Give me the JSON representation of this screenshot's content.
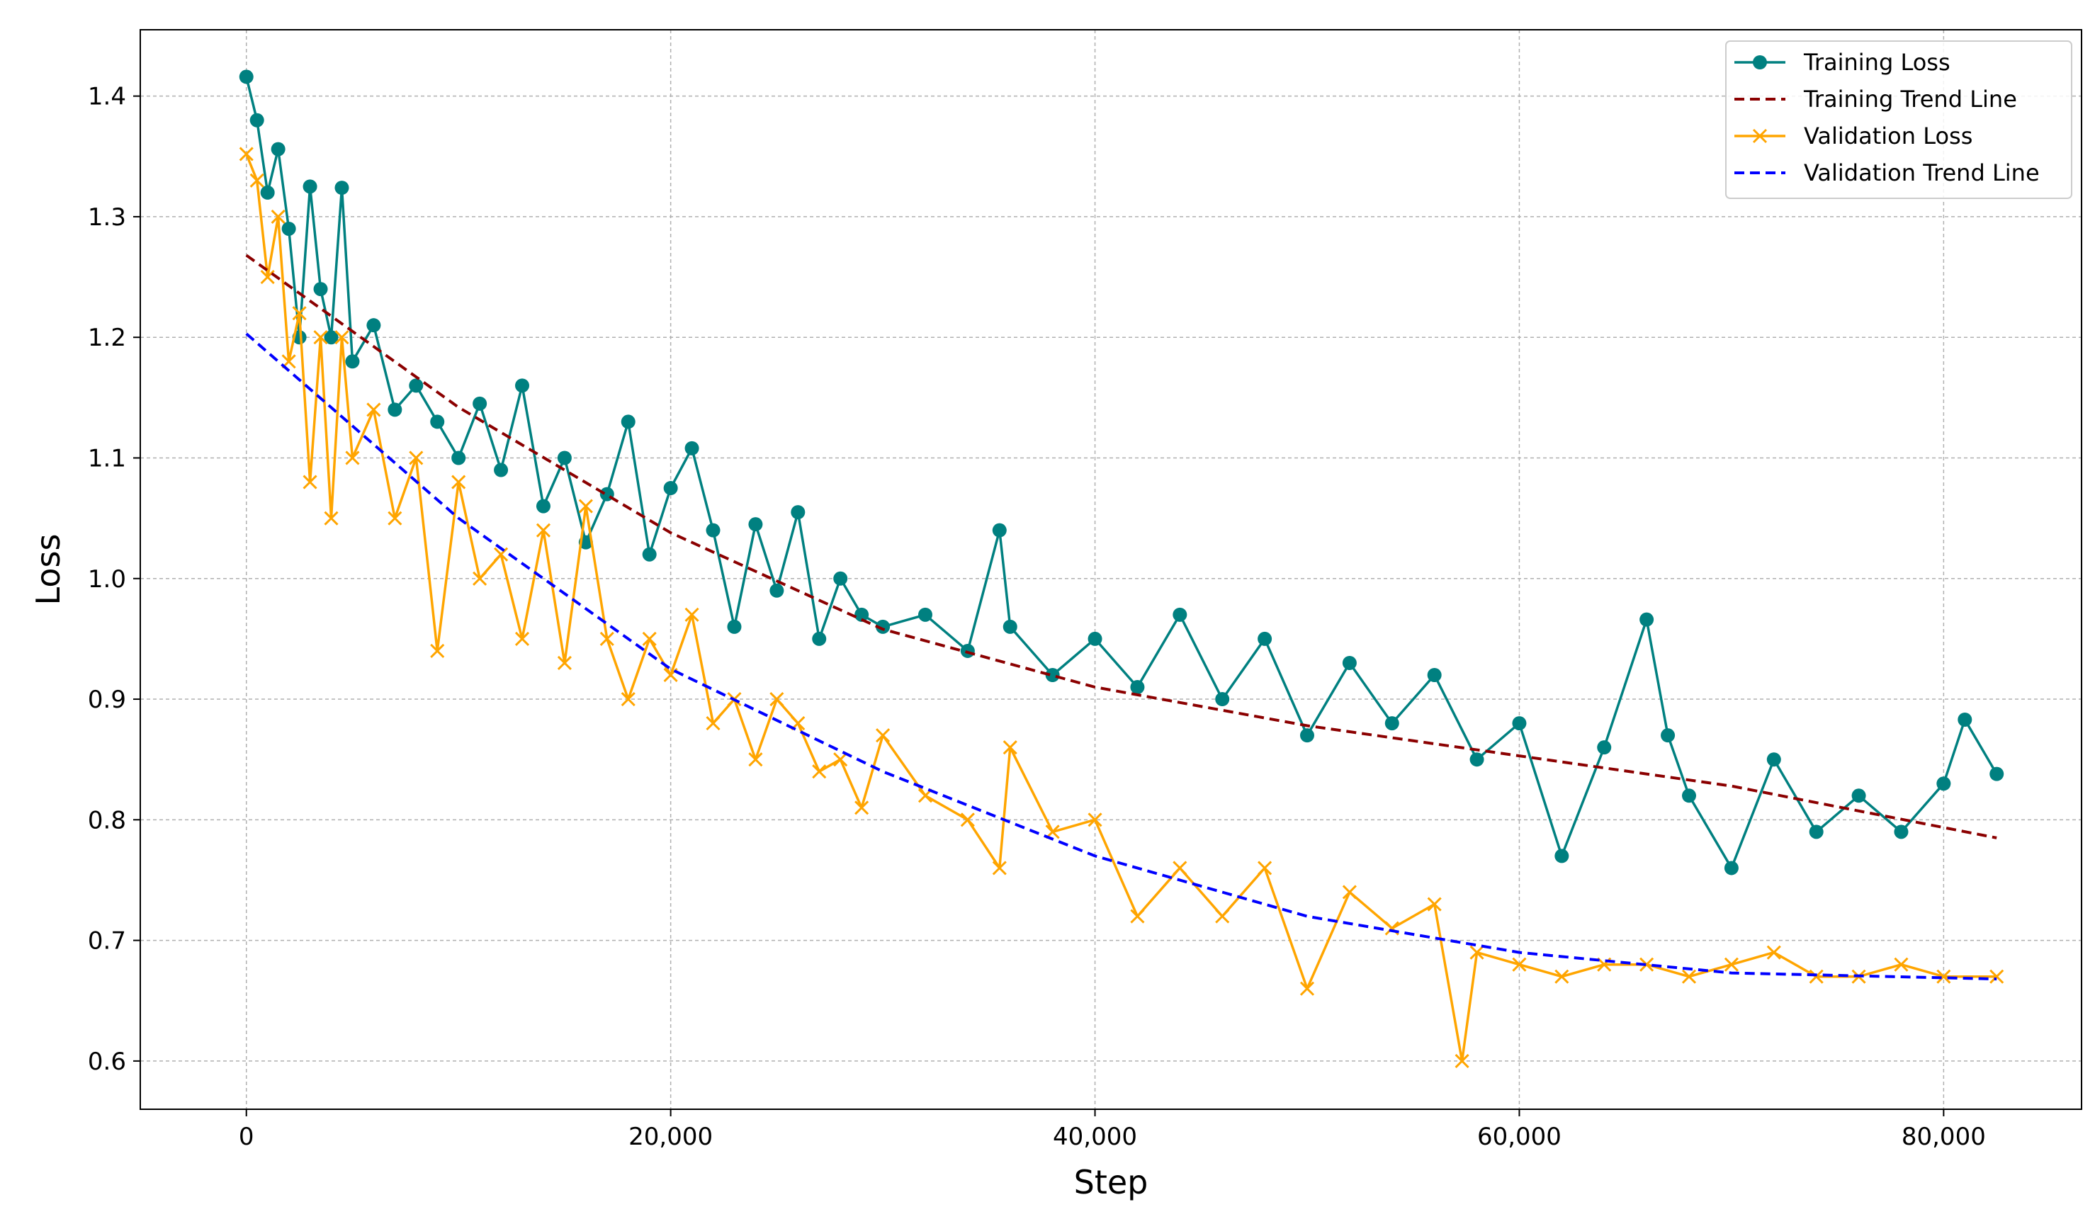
{
  "chart_data": {
    "type": "line",
    "title": "",
    "xlabel": "Step",
    "ylabel": "Loss",
    "xlim": [
      -5000,
      86500
    ],
    "ylim": [
      0.56,
      1.455
    ],
    "xticks": [
      0,
      20000,
      40000,
      60000,
      80000
    ],
    "xtick_labels": [
      "0",
      "20,000",
      "40,000",
      "60,000",
      "80,000"
    ],
    "yticks": [
      0.6,
      0.7,
      0.8,
      0.9,
      1.0,
      1.1,
      1.2,
      1.3,
      1.4
    ],
    "ytick_labels": [
      "0.6",
      "0.7",
      "0.8",
      "0.9",
      "1.0",
      "1.1",
      "1.2",
      "1.3",
      "1.4"
    ],
    "grid": true,
    "legend_position": "top-right",
    "series": [
      {
        "name": "Training Loss",
        "kind": "markers-line",
        "marker": "circle",
        "color": "#008080",
        "x": [
          0,
          500,
          1000,
          1500,
          2000,
          2500,
          3000,
          3500,
          4000,
          4500,
          5000,
          6000,
          7000,
          8000,
          9000,
          10000,
          11000,
          12000,
          13000,
          14000,
          15000,
          16000,
          17000,
          18000,
          19000,
          20000,
          21000,
          22000,
          23000,
          24000,
          25000,
          26000,
          27000,
          28000,
          29000,
          30000,
          32000,
          34000,
          35500,
          36000,
          38000,
          40000,
          42000,
          44000,
          46000,
          48000,
          50000,
          52000,
          54000,
          56000,
          58000,
          60000,
          62000,
          64000,
          66000,
          67000,
          68000,
          70000,
          72000,
          74000,
          76000,
          78000,
          80000,
          81000,
          82500
        ],
        "y": [
          1.416,
          1.38,
          1.32,
          1.356,
          1.29,
          1.2,
          1.325,
          1.24,
          1.2,
          1.324,
          1.18,
          1.21,
          1.14,
          1.16,
          1.13,
          1.1,
          1.145,
          1.09,
          1.16,
          1.06,
          1.1,
          1.03,
          1.07,
          1.13,
          1.02,
          1.075,
          1.108,
          1.04,
          0.96,
          1.045,
          0.99,
          1.055,
          0.95,
          1.0,
          0.97,
          0.96,
          0.97,
          0.94,
          1.04,
          0.96,
          0.92,
          0.95,
          0.91,
          0.97,
          0.9,
          0.95,
          0.87,
          0.93,
          0.88,
          0.92,
          0.85,
          0.88,
          0.77,
          0.86,
          0.966,
          0.87,
          0.82,
          0.76,
          0.85,
          0.79,
          0.82,
          0.79,
          0.83,
          0.883,
          0.838
        ]
      },
      {
        "name": "Training Trend Line",
        "kind": "dashed-line",
        "color": "#8b0000",
        "x": [
          0,
          10000,
          20000,
          30000,
          40000,
          50000,
          60000,
          70000,
          82500
        ],
        "y": [
          1.268,
          1.142,
          1.038,
          0.958,
          0.91,
          0.878,
          0.853,
          0.828,
          0.785
        ]
      },
      {
        "name": "Validation Loss",
        "kind": "markers-line",
        "marker": "x",
        "color": "#ffa500",
        "x": [
          0,
          500,
          1000,
          1500,
          2000,
          2500,
          3000,
          3500,
          4000,
          4500,
          5000,
          6000,
          7000,
          8000,
          9000,
          10000,
          11000,
          12000,
          13000,
          14000,
          15000,
          16000,
          17000,
          18000,
          19000,
          20000,
          21000,
          22000,
          23000,
          24000,
          25000,
          26000,
          27000,
          28000,
          29000,
          30000,
          32000,
          34000,
          35500,
          36000,
          38000,
          40000,
          42000,
          44000,
          46000,
          48000,
          50000,
          52000,
          54000,
          56000,
          57300,
          58000,
          60000,
          62000,
          64000,
          66000,
          68000,
          70000,
          72000,
          74000,
          76000,
          78000,
          80000,
          82500
        ],
        "y": [
          1.352,
          1.33,
          1.25,
          1.3,
          1.18,
          1.22,
          1.08,
          1.2,
          1.05,
          1.2,
          1.1,
          1.14,
          1.05,
          1.1,
          0.94,
          1.08,
          1.0,
          1.02,
          0.95,
          1.04,
          0.93,
          1.06,
          0.95,
          0.9,
          0.95,
          0.92,
          0.97,
          0.88,
          0.9,
          0.85,
          0.9,
          0.88,
          0.84,
          0.85,
          0.81,
          0.87,
          0.82,
          0.8,
          0.76,
          0.86,
          0.79,
          0.8,
          0.72,
          0.76,
          0.72,
          0.76,
          0.66,
          0.74,
          0.71,
          0.73,
          0.6,
          0.69,
          0.68,
          0.67,
          0.68,
          0.68,
          0.67,
          0.68,
          0.69,
          0.67,
          0.67,
          0.68,
          0.67,
          0.67
        ]
      },
      {
        "name": "Validation Trend Line",
        "kind": "dashed-line",
        "color": "#0000ff",
        "x": [
          0,
          10000,
          20000,
          30000,
          40000,
          50000,
          60000,
          70000,
          82500
        ],
        "y": [
          1.203,
          1.05,
          0.925,
          0.84,
          0.77,
          0.72,
          0.69,
          0.673,
          0.668
        ]
      }
    ]
  }
}
